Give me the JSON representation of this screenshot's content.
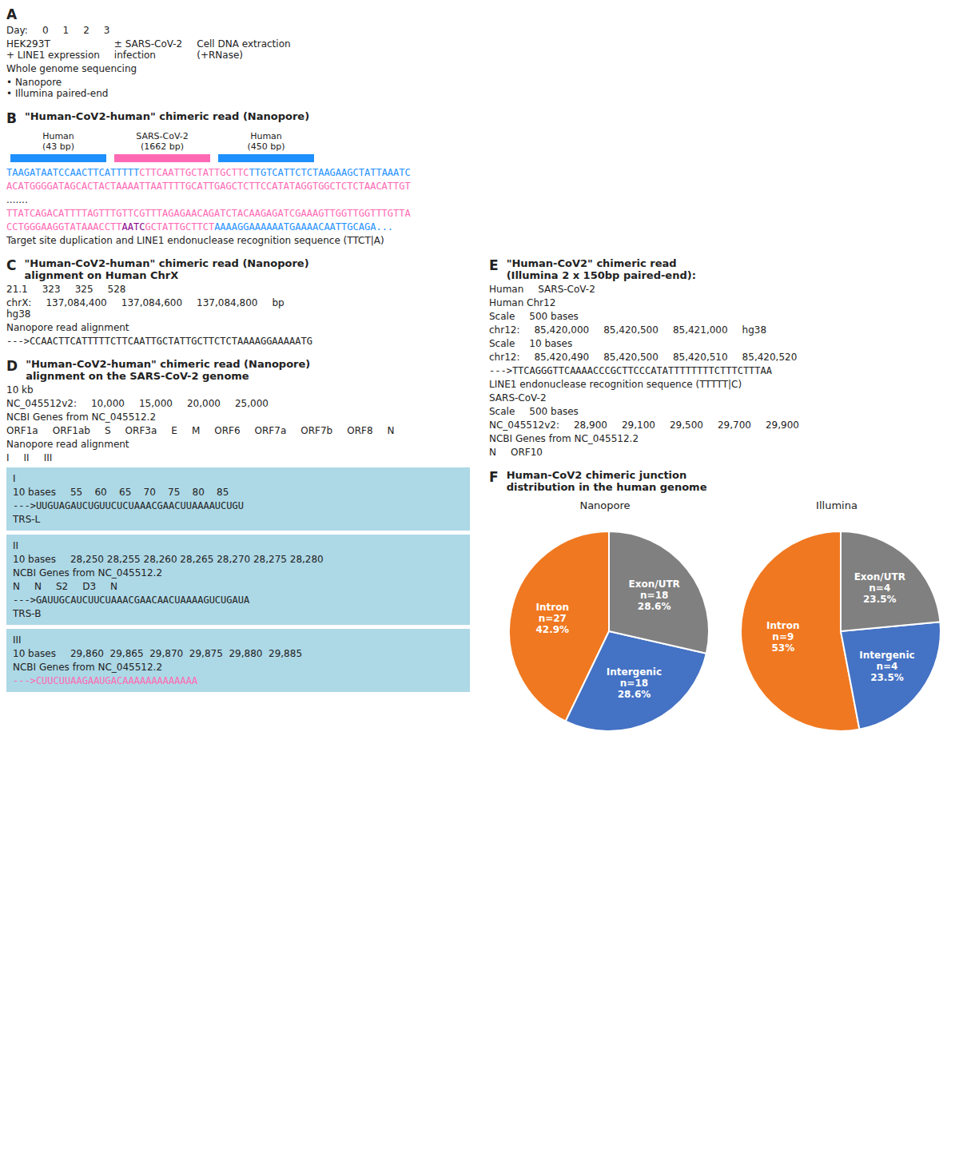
{
  "chart_data": [
    {
      "type": "pie",
      "title": "Nanopore",
      "categories": [
        "Intron",
        "Intergenic",
        "Exon/UTR"
      ],
      "values": [
        42.9,
        28.6,
        28.6
      ],
      "value_labels": [
        "n=27\n42.9%",
        "n=18\n28.6%",
        "n=18\n28.6%"
      ],
      "colors": [
        "#F07820",
        "#4472C4",
        "#808080"
      ]
    },
    {
      "type": "pie",
      "title": "Illumina",
      "categories": [
        "Intron",
        "Intergenic",
        "Exon/UTR"
      ],
      "values": [
        53.0,
        23.5,
        23.5
      ],
      "value_labels": [
        "n=9\n53%",
        "n=4\n23.5%",
        "n=4\n23.5%"
      ],
      "colors": [
        "#F07820",
        "#4472C4",
        "#808080"
      ]
    }
  ],
  "annotations": [
    {
      "label": "A",
      "items": [
        [
          "Day:",
          "0",
          "1",
          "2",
          "3"
        ],
        [
          "HEK293T\n+ LINE1 expression",
          "± SARS-CoV-2\ninfection",
          "Cell DNA extraction\n(+RNase)"
        ],
        "Whole genome sequencing",
        "• Nanopore\n• Illumina paired-end"
      ]
    },
    {
      "label": "B",
      "title": "\"Human-CoV2-human\" chimeric read (Nanopore)",
      "reads": [
        {
          "text": "Human\n(43 bp)",
          "color": "#1E90FF"
        },
        {
          "text": "SARS-CoV-2\n(1662 bp)",
          "color": "#FF69B4"
        },
        {
          "text": "Human\n(450 bp)",
          "color": "#1E90FF"
        }
      ],
      "items": [
        [
          {
            "text": "TAAGATAATCCAACTTCATTTTT",
            "color": "#1E90FF"
          },
          {
            "text": "CTTCAATTGCTATTGCTTC",
            "color": "#FF69B4"
          },
          {
            "text": "T",
            "color": "#1E90FF"
          },
          {
            "text": "TGTCATTCTCTAAGAAGCTATTAAATC",
            "color": "#1E90FF"
          }
        ],
        [
          {
            "text": "ACATGGGGATAGCACTACTAAAATTAATTTTGCATTGAGCTCTTCCATATAGGTGGCTCTCTAACATTGT",
            "color": "#FF69B4"
          }
        ],
        ".......",
        [
          {
            "text": "TTATCAGACATTTTAGTTTGTTCGTTTAGAGAACAGATCTACAAGAGATCGAAAGTTGGTTGGTTTGTTA",
            "color": "#FF69B4"
          }
        ],
        [
          {
            "text": "CCTGGGAAGGTATAAAC",
            "color": "#FF69B4"
          },
          {
            "text": "CTT",
            "color": "#FF69B4"
          },
          {
            "text": "AATC",
            "color": "#8B008B"
          },
          {
            "text": "GCTATTGCTTCT",
            "color": "#FF69B4"
          },
          {
            "text": "AAAAGGAAAAAATGAAAACAATTGCAGA...",
            "color": "#1E90FF"
          }
        ],
        [
          {
            "text": "Target site duplication"
          },
          {
            "text": " and LINE1 endonuclease recognition sequence ("
          },
          {
            "text": "TTCT|A"
          },
          {
            "text": ")"
          }
        ]
      ]
    },
    {
      "label": "C",
      "title": "\"Human-CoV2-human\" chimeric read (Nanopore)\nalignment on Human ChrX",
      "items": [
        [
          "21.1",
          "323",
          "325",
          "528"
        ],
        [
          "chrX:\nhg38",
          "137,084,400",
          "137,084,600",
          "137,084,800",
          "bp"
        ],
        "Nanopore read alignment",
        [
          {
            "text": "--->CCAACTTCATTTTT",
            "color": "#222222"
          },
          {
            "text": "CTTCAATTGCTATTGCTTC",
            "color": "#222222"
          },
          {
            "text": "TCTA",
            "color": "#222222"
          },
          {
            "text": "AAAGGAAAAATG",
            "color": "#222222"
          }
        ]
      ]
    },
    {
      "label": "D",
      "title": "\"Human-CoV2-human\" chimeric read (Nanopore)\nalignment on the SARS-CoV-2 genome",
      "items": [
        [
          "10 kb"
        ],
        [
          "NC_045512v2:",
          "10,000",
          "15,000",
          "20,000",
          "25,000"
        ],
        "NCBI Genes from NC_045512.2",
        [
          "ORF1a",
          "ORF1ab",
          "S",
          "ORF3a",
          "E",
          "M",
          "ORF6",
          "ORF7a",
          "ORF7b",
          "ORF8",
          "N"
        ],
        "Nanopore read alignment",
        [
          "I",
          "II",
          "III"
        ],
        {
          "color": "#ADD8E6",
          "items": [
            "I",
            [
              "10 bases",
              "55    60    65    70    75    80    85"
            ],
            [
              {
                "text": "--->UUGUAGAUCUGUUCUCUAAA",
                "color": "#222222"
              },
              {
                "text": "CGAAC",
                "color": "#222222"
              },
              {
                "text": "UUAAAAUCUGU",
                "color": "#222222"
              }
            ],
            "TRS-L"
          ]
        },
        {
          "color": "#ADD8E6",
          "items": [
            "II",
            [
              "10 bases",
              "28,250 28,255 28,260 28,265 28,270 28,275 28,280"
            ],
            "NCBI Genes from NC_045512.2",
            [
              "N",
              "N",
              "S2",
              "D3",
              "N"
            ],
            [
              {
                "text": "--->GAUUGCAUCUUCUAAA",
                "color": "#222222"
              },
              {
                "text": "CGAAC",
                "color": "#222222"
              },
              {
                "text": "AACUAAAAGUCUGAUA",
                "color": "#222222"
              }
            ],
            "TRS-B"
          ]
        },
        {
          "color": "#ADD8E6",
          "items": [
            "III",
            [
              "10 bases",
              "29,860  29,865  29,870  29,875  29,880  29,885"
            ],
            "NCBI Genes from NC_045512.2",
            [
              {
                "text": "--->CUUCUUAAGAAUGACAAAAAAAAAAAAA",
                "color": "#FF69B4"
              }
            ]
          ]
        }
      ]
    },
    {
      "label": "E",
      "title": "\"Human-CoV2\" chimeric read\n(Illumina 2 x 150bp paired-end):",
      "items": [
        [
          "Human",
          "SARS-CoV-2"
        ],
        "Human Chr12",
        [
          "Scale",
          "500 bases"
        ],
        [
          "chr12:",
          "85,420,000",
          "85,420,500",
          "85,421,000",
          "hg38"
        ],
        [
          "Scale",
          "10 bases"
        ],
        [
          "chr12:",
          "85,420,490",
          "85,420,500",
          "85,420,510",
          "85,420,520"
        ],
        [
          {
            "text": "--->TTCAGGGTTCAAAACCCGCTTCCCATATTT",
            "color": "#222222"
          },
          {
            "text": "TTTTTC",
            "color": "#222222"
          },
          {
            "text": "TTTCTTTAA",
            "color": "#222222"
          }
        ],
        [
          {
            "text": "LINE1 endonuclease recognition sequence ("
          },
          {
            "text": "TTTTT|C"
          },
          {
            "text": ")"
          }
        ],
        "SARS-CoV-2",
        [
          "Scale",
          "500 bases"
        ],
        [
          "NC_045512v2:",
          "28,900",
          "29,100",
          "29,500",
          "29,700",
          "29,900"
        ],
        "NCBI Genes from NC_045512.2",
        [
          "N",
          "ORF10"
        ]
      ]
    },
    {
      "label": "F",
      "title": "Human-CoV2 chimeric junction\ndistribution in the human genome"
    }
  ]
}
